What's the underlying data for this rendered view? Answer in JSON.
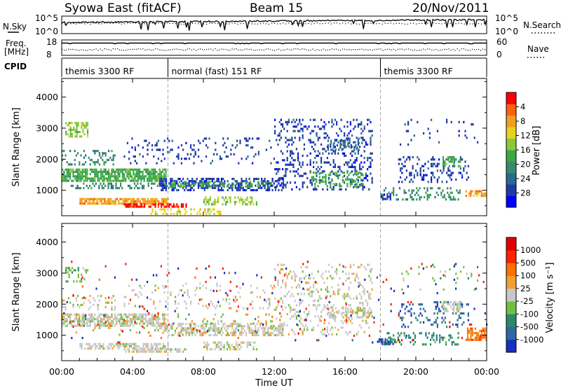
{
  "header": {
    "title": "Syowa East (fitACF)",
    "beam": "Beam 15",
    "date": "20/Nov/2011"
  },
  "panels": {
    "nsky_label": "N.Sky",
    "nsearch_label": "N.Search",
    "noise_ticks": [
      "10^5",
      "10^0"
    ],
    "freq_label_1": "Freq.",
    "freq_label_2": "[MHz]",
    "freq_ticks": [
      "18",
      "8"
    ],
    "nave_label": "Nave",
    "nave_ticks": [
      "60",
      "0"
    ],
    "cpid_label": "CPID",
    "cpid_segments": [
      {
        "label": "themis 3300 RF",
        "start_h": 0,
        "end_h": 6
      },
      {
        "label": "normal (fast) 151 RF",
        "start_h": 6,
        "end_h": 18
      },
      {
        "label": "themis 3300 RF",
        "start_h": 18,
        "end_h": 24
      }
    ]
  },
  "chart_data": [
    {
      "type": "heatmap",
      "name": "power",
      "ylabel": "Slant Range [km]",
      "xlim": [
        0,
        24
      ],
      "ylim": [
        180,
        4600
      ],
      "yticks": [
        1000,
        2000,
        3000,
        4000
      ],
      "colorbar": {
        "label": "Power [dB]",
        "ticks": [
          "4",
          "8",
          "12",
          "16",
          "20",
          "24",
          "28"
        ],
        "colors": [
          "#0000ff",
          "#1f3aa8",
          "#2a6a8c",
          "#3a8a6a",
          "#3aa84a",
          "#8cc83a",
          "#e8d020",
          "#f0a020",
          "#ff6010",
          "#ff0000"
        ],
        "range": [
          0,
          30
        ]
      },
      "regions": [
        {
          "x0": 0.0,
          "x1": 5.9,
          "y0": 1300,
          "y1": 1700,
          "c": 4,
          "d": 0.75
        },
        {
          "x0": 0.2,
          "x1": 1.5,
          "y0": 2700,
          "y1": 3200,
          "c": 5,
          "d": 0.55
        },
        {
          "x0": 0.0,
          "x1": 3.0,
          "y0": 1800,
          "y1": 2300,
          "c": 3,
          "d": 0.25
        },
        {
          "x0": 0.5,
          "x1": 6.0,
          "y0": 1050,
          "y1": 1250,
          "c": 3,
          "d": 0.35
        },
        {
          "x0": 1.0,
          "x1": 6.0,
          "y0": 600,
          "y1": 750,
          "c": 7,
          "d": 0.8
        },
        {
          "x0": 3.5,
          "x1": 7.0,
          "y0": 450,
          "y1": 580,
          "c": 9,
          "d": 0.75
        },
        {
          "x0": 5.0,
          "x1": 9.0,
          "y0": 250,
          "y1": 420,
          "c": 6,
          "d": 0.35
        },
        {
          "x0": 5.5,
          "x1": 12.5,
          "y0": 1000,
          "y1": 1400,
          "c": 1,
          "d": 0.5
        },
        {
          "x0": 6.0,
          "x1": 12.0,
          "y0": 1150,
          "y1": 1300,
          "c": 4,
          "d": 0.35
        },
        {
          "x0": 8.0,
          "x1": 11.0,
          "y0": 550,
          "y1": 800,
          "c": 5,
          "d": 0.5
        },
        {
          "x0": 12.0,
          "x1": 17.5,
          "y0": 1000,
          "y1": 3300,
          "c": 1,
          "d": 0.22
        },
        {
          "x0": 14.0,
          "x1": 17.0,
          "y0": 1100,
          "y1": 1600,
          "c": 4,
          "d": 0.35
        },
        {
          "x0": 15.0,
          "x1": 17.0,
          "y0": 2300,
          "y1": 2700,
          "c": 2,
          "d": 0.3
        },
        {
          "x0": 3.5,
          "x1": 12.0,
          "y0": 1850,
          "y1": 2700,
          "c": 1,
          "d": 0.12
        },
        {
          "x0": 18.0,
          "x1": 22.5,
          "y0": 700,
          "y1": 1100,
          "c": 3,
          "d": 0.3
        },
        {
          "x0": 19.0,
          "x1": 23.0,
          "y0": 1300,
          "y1": 2100,
          "c": 1,
          "d": 0.22
        },
        {
          "x0": 21.5,
          "x1": 22.5,
          "y0": 1800,
          "y1": 2100,
          "c": 4,
          "d": 0.45
        },
        {
          "x0": 22.8,
          "x1": 24.0,
          "y0": 850,
          "y1": 1000,
          "c": 7,
          "d": 0.6
        },
        {
          "x0": 18.0,
          "x1": 18.6,
          "y0": 700,
          "y1": 900,
          "c": 1,
          "d": 0.5
        },
        {
          "x0": 19.0,
          "x1": 23.5,
          "y0": 2500,
          "y1": 3300,
          "c": 1,
          "d": 0.06
        }
      ]
    },
    {
      "type": "heatmap",
      "name": "velocity",
      "ylabel": "Slant Range [km]",
      "xlabel": "Time UT",
      "xlim": [
        0,
        24
      ],
      "ylim": [
        180,
        4600
      ],
      "yticks": [
        1000,
        2000,
        3000,
        4000
      ],
      "xticks": [
        "00:00",
        "04:00",
        "08:00",
        "12:00",
        "16:00",
        "20:00",
        "00:00"
      ],
      "colorbar": {
        "label": "Velocity [m s⁻¹]",
        "ticks": [
          "1000",
          "500",
          "100",
          "25",
          "-25",
          "-100",
          "-500",
          "-1000"
        ],
        "colors": [
          "#1830c0",
          "#2a6aa0",
          "#2a8a6a",
          "#70c040",
          "#c8c8c8",
          "#f0a030",
          "#ff7000",
          "#ff2000",
          "#e00000"
        ],
        "range": [
          -1000,
          1000
        ]
      },
      "regions": [
        {
          "x0": 0.0,
          "x1": 5.9,
          "y0": 1300,
          "y1": 1700,
          "c": 4,
          "d": 0.7
        },
        {
          "x0": 0.0,
          "x1": 3.0,
          "y0": 1800,
          "y1": 2300,
          "c": 4,
          "d": 0.2
        },
        {
          "x0": 0.2,
          "x1": 1.5,
          "y0": 2700,
          "y1": 3200,
          "c": 3,
          "d": 0.3
        },
        {
          "x0": 1.0,
          "x1": 6.0,
          "y0": 600,
          "y1": 750,
          "c": 4,
          "d": 0.6
        },
        {
          "x0": 3.5,
          "x1": 7.0,
          "y0": 450,
          "y1": 580,
          "c": 4,
          "d": 0.6
        },
        {
          "x0": 5.5,
          "x1": 12.5,
          "y0": 1000,
          "y1": 1400,
          "c": 4,
          "d": 0.55
        },
        {
          "x0": 8.0,
          "x1": 11.0,
          "y0": 550,
          "y1": 800,
          "c": 4,
          "d": 0.45
        },
        {
          "x0": 12.0,
          "x1": 17.5,
          "y0": 1000,
          "y1": 3300,
          "c": 4,
          "d": 0.18
        },
        {
          "x0": 15.0,
          "x1": 17.5,
          "y0": 1600,
          "y1": 1900,
          "c": 4,
          "d": 0.5
        },
        {
          "x0": 3.5,
          "x1": 12.0,
          "y0": 1850,
          "y1": 2700,
          "c": 4,
          "d": 0.1
        },
        {
          "x0": 0.0,
          "x1": 12.0,
          "y0": 1000,
          "y1": 1700,
          "c": 3,
          "d": 0.05
        },
        {
          "x0": 0.0,
          "x1": 12.0,
          "y0": 1000,
          "y1": 1700,
          "c": 5,
          "d": 0.04
        },
        {
          "x0": 17.8,
          "x1": 18.8,
          "y0": 700,
          "y1": 900,
          "c": 0,
          "d": 0.55
        },
        {
          "x0": 18.0,
          "x1": 22.5,
          "y0": 700,
          "y1": 1100,
          "c": 2,
          "d": 0.3
        },
        {
          "x0": 19.0,
          "x1": 23.0,
          "y0": 1300,
          "y1": 2100,
          "c": 1,
          "d": 0.18
        },
        {
          "x0": 21.5,
          "x1": 22.5,
          "y0": 1800,
          "y1": 2100,
          "c": 4,
          "d": 0.45
        },
        {
          "x0": 22.8,
          "x1": 24.0,
          "y0": 850,
          "y1": 1250,
          "c": 6,
          "d": 0.65
        },
        {
          "x0": 19.0,
          "x1": 23.5,
          "y0": 2500,
          "y1": 3300,
          "c": 3,
          "d": 0.05
        },
        {
          "x0": 0.0,
          "x1": 24.0,
          "y0": 800,
          "y1": 3400,
          "c": 7,
          "d": 0.01
        },
        {
          "x0": 0.0,
          "x1": 24.0,
          "y0": 800,
          "y1": 3400,
          "c": 0,
          "d": 0.008
        }
      ]
    }
  ]
}
